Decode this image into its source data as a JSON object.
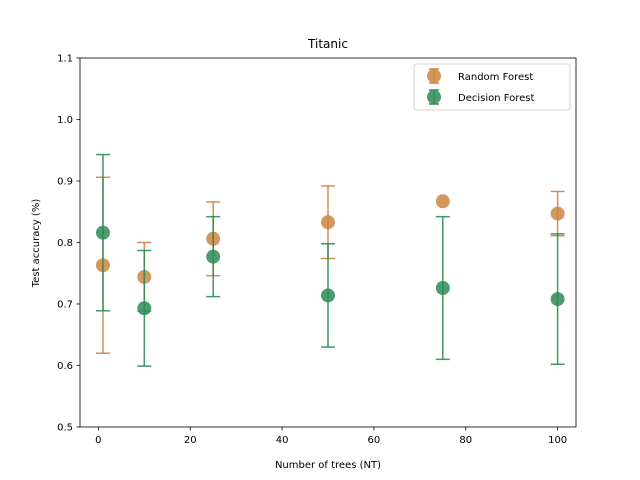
{
  "chart_data": {
    "type": "scatter",
    "title": "Titanic",
    "xlabel": "Number of trees (NT)",
    "ylabel": "Test accuracy (%)",
    "xlim": [
      -4,
      104
    ],
    "ylim": [
      0.5,
      1.1
    ],
    "xticks": [
      "0",
      "20",
      "40",
      "60",
      "80",
      "100"
    ],
    "yticks": [
      "0.5",
      "0.6",
      "0.7",
      "0.8",
      "0.9",
      "1.0",
      "1.1"
    ],
    "grid": false,
    "legend_placement": "top-right",
    "error_bars": true,
    "series": [
      {
        "name": "Random Forest",
        "color": "#cd853f",
        "x": [
          1,
          10,
          25,
          50,
          75,
          100
        ],
        "y": [
          0.763,
          0.744,
          0.806,
          0.833,
          0.867,
          0.847
        ],
        "err": [
          0.143,
          0.056,
          0.06,
          0.059,
          0.0,
          0.036
        ]
      },
      {
        "name": "Decision Forest",
        "color": "#2e8b57",
        "x": [
          1,
          10,
          25,
          50,
          75,
          100
        ],
        "y": [
          0.816,
          0.693,
          0.777,
          0.714,
          0.726,
          0.708
        ],
        "err": [
          0.127,
          0.094,
          0.065,
          0.084,
          0.116,
          0.106
        ]
      }
    ]
  }
}
